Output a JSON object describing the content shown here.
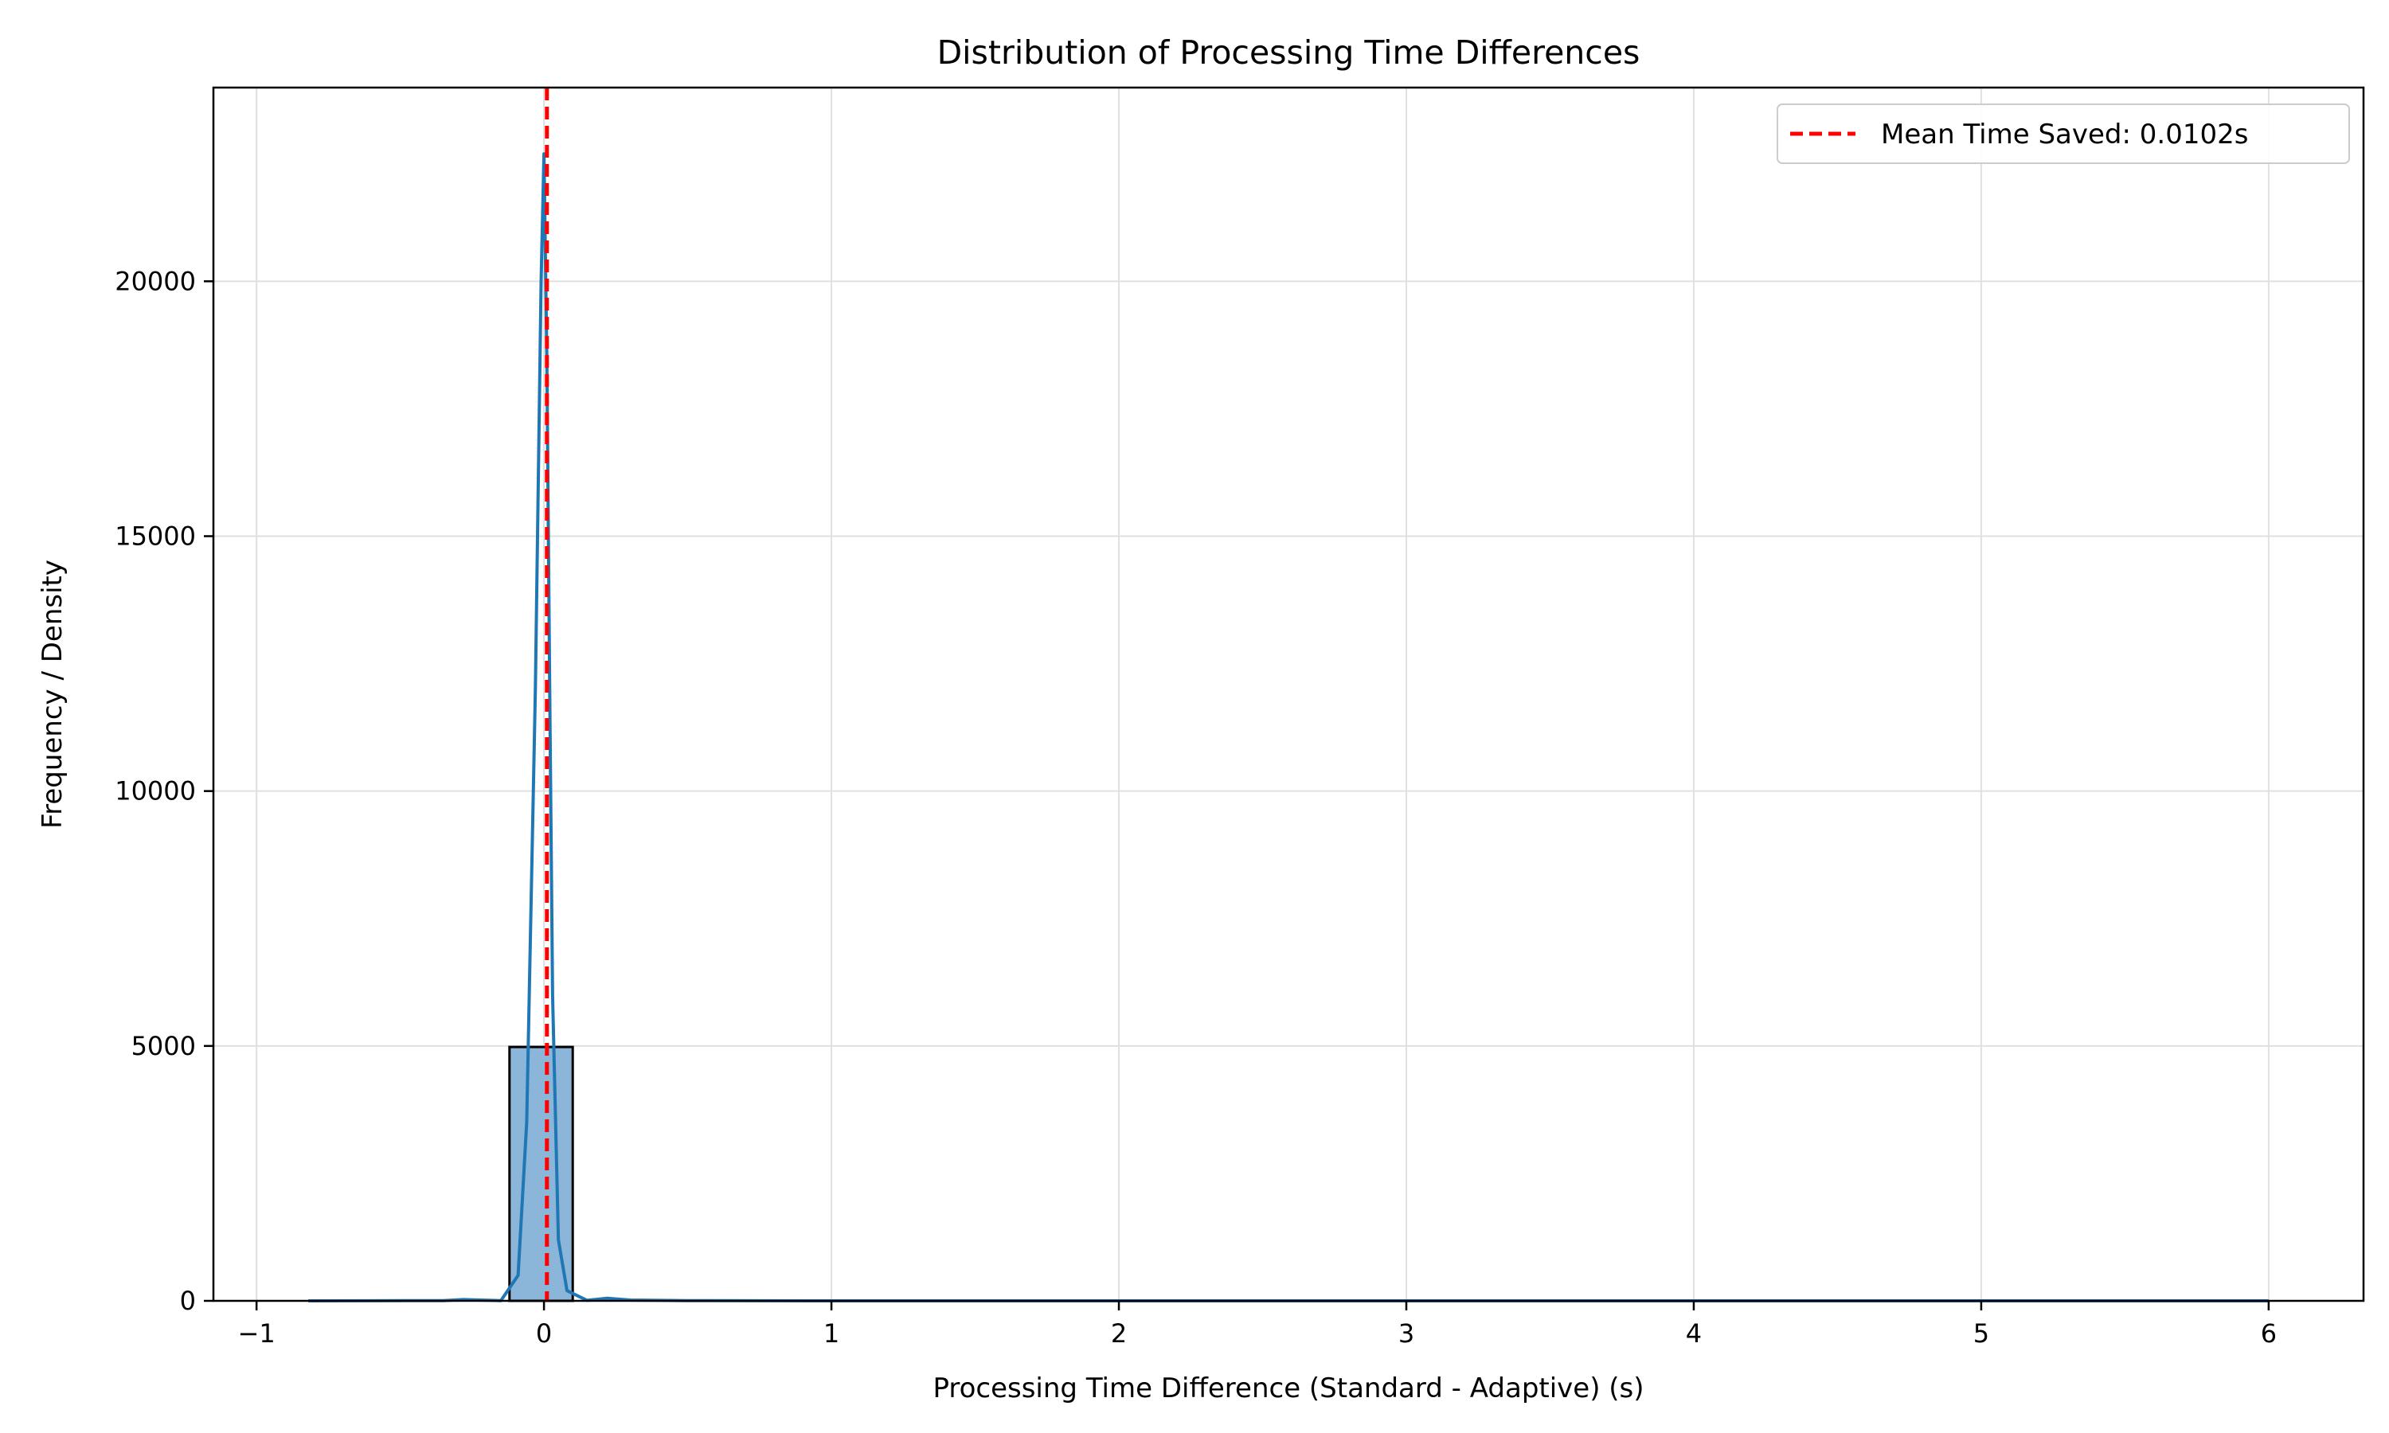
{
  "chart_data": {
    "type": "histogram",
    "title": "Distribution of Processing Time Differences",
    "xlabel": "Processing Time Difference (Standard - Adaptive) (s)",
    "ylabel": "Frequency / Density",
    "xlim": [
      -1.15,
      6.33
    ],
    "ylim": [
      0,
      23800
    ],
    "x_ticks": [
      -1,
      0,
      1,
      2,
      3,
      4,
      5,
      6
    ],
    "y_ticks": [
      0,
      5000,
      10000,
      15000,
      20000
    ],
    "grid": true,
    "legend_position": "upper right",
    "colors": {
      "bar_fill": "#8bb5d9",
      "bar_edge": "#000000",
      "kde_line": "#1f77b4",
      "mean_line": "#ff0000",
      "grid": "#e0e0e0"
    },
    "histogram": {
      "bins": [
        {
          "x0": -0.82,
          "x1": -0.12,
          "count": 0
        },
        {
          "x0": -0.12,
          "x1": 0.1,
          "count": 4980
        },
        {
          "x0": 0.1,
          "x1": 6.0,
          "count": 0
        }
      ]
    },
    "kde": {
      "name": "density",
      "x": [
        -0.82,
        -0.6,
        -0.35,
        -0.28,
        -0.15,
        -0.09,
        -0.06,
        -0.03,
        -0.01,
        0.0,
        0.01,
        0.02,
        0.03,
        0.05,
        0.08,
        0.15,
        0.22,
        0.3,
        0.5,
        1.0,
        2.0,
        3.0,
        4.0,
        5.0,
        6.0
      ],
      "y": [
        0,
        2,
        5,
        25,
        5,
        500,
        3500,
        12000,
        20000,
        22500,
        18500,
        12000,
        6000,
        1200,
        200,
        10,
        50,
        15,
        5,
        0,
        0,
        0,
        0,
        0,
        0
      ]
    },
    "mean_line": {
      "x": 0.0102,
      "label": "Mean Time Saved: 0.0102s"
    }
  }
}
